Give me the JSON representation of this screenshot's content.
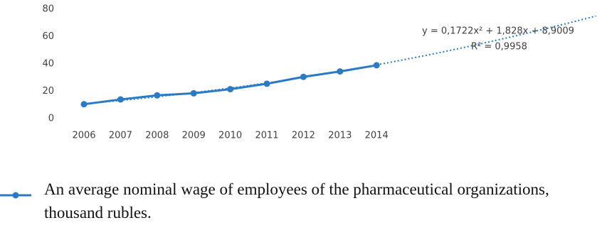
{
  "chart_data": {
    "type": "line",
    "categories": [
      "2006",
      "2007",
      "2008",
      "2009",
      "2010",
      "2011",
      "2012",
      "2013",
      "2014"
    ],
    "series": [
      {
        "name": "An average nominal wage of employees of the pharmaceutical organizations, thousand rubles.",
        "color": "#2a7ac6",
        "values": [
          10.5,
          14,
          17,
          18.5,
          21.5,
          25.5,
          30.5,
          34.5,
          39
        ]
      }
    ],
    "ylim": [
      0,
      80
    ],
    "yticks": [
      0,
      20,
      40,
      60,
      80
    ],
    "grid": false,
    "trendline": {
      "coefficients": [
        0.1722,
        1.828,
        8.9009
      ],
      "equation": "y = 0,1722x² + 1,828x + 8,9009",
      "r_squared": "R² = 0,9958"
    }
  }
}
